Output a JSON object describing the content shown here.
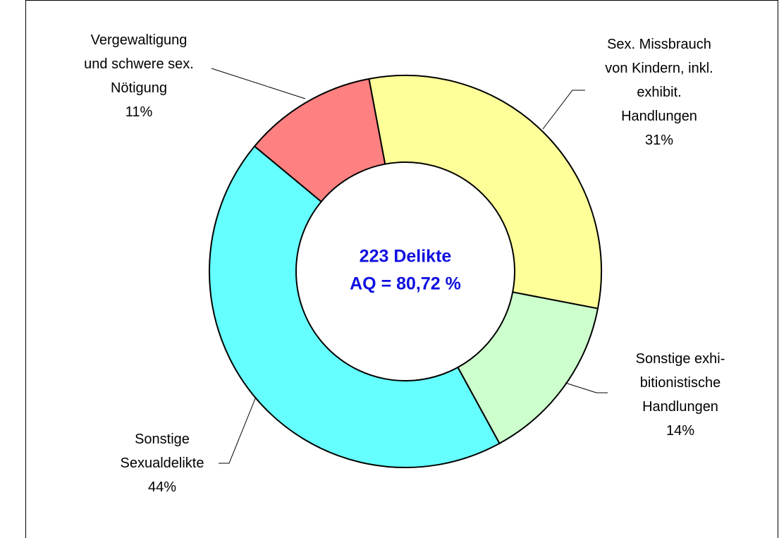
{
  "chart_data": {
    "type": "donut",
    "center_text": [
      "223 Delikte",
      "AQ = 80,72 %"
    ],
    "categories": [
      "Sex. Missbrauch\nvon Kindern, inkl.\nexhibit.\nHandlungen",
      "Sonstige exhi-\nbitionistische\nHandlungen",
      "Sonstige\nSexualdelikte",
      "Vergewaltigung\nund schwere sex.\nNötigung"
    ],
    "values": [
      31,
      14,
      44,
      11
    ],
    "value_labels": [
      "31%",
      "14%",
      "44%",
      "11%"
    ],
    "colors": [
      "#ffff99",
      "#ccffcc",
      "#66ffff",
      "#ff8080"
    ]
  }
}
